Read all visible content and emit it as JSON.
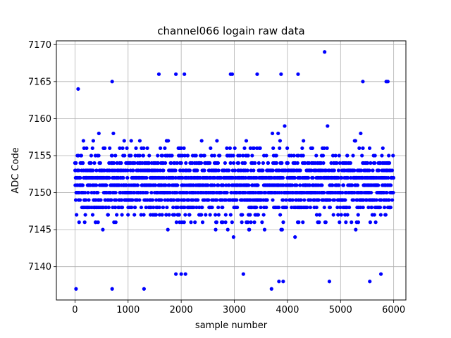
{
  "chart_data": {
    "type": "scatter",
    "title": "channel066 logain raw data",
    "xlabel": "sample number",
    "ylabel": "ADC Code",
    "xlim": [
      -350,
      6230
    ],
    "ylim": [
      7135.5,
      7170.5
    ],
    "xticks": [
      0,
      1000,
      2000,
      3000,
      4000,
      5000,
      6000
    ],
    "yticks": [
      7140,
      7145,
      7150,
      7155,
      7160,
      7165,
      7170
    ],
    "grid": true,
    "series": [
      {
        "color": "#0000ff",
        "marker": "circle",
        "n_samples": 6000,
        "integer_values": true,
        "dense_band": [
          7140,
          7160
        ],
        "core_range": [
          7143,
          7159
        ],
        "outlier_points": [
          [
            20,
            7137
          ],
          [
            700,
            7137
          ],
          [
            1300,
            7137
          ],
          [
            3700,
            7137
          ],
          [
            60,
            7164
          ],
          [
            700,
            7165
          ],
          [
            1580,
            7166
          ],
          [
            1900,
            7166
          ],
          [
            2060,
            7166
          ],
          [
            2930,
            7166
          ],
          [
            2960,
            7166
          ],
          [
            3430,
            7166
          ],
          [
            3880,
            7166
          ],
          [
            4200,
            7166
          ],
          [
            4700,
            7169
          ],
          [
            5420,
            7165
          ],
          [
            5860,
            7165
          ],
          [
            5890,
            7165
          ],
          [
            3170,
            7139
          ],
          [
            3840,
            7138
          ],
          [
            3920,
            7138
          ],
          [
            4790,
            7138
          ],
          [
            5550,
            7138
          ],
          [
            1900,
            7139
          ],
          [
            2000,
            7139
          ],
          [
            2080,
            7139
          ],
          [
            5760,
            7139
          ]
        ]
      }
    ]
  }
}
